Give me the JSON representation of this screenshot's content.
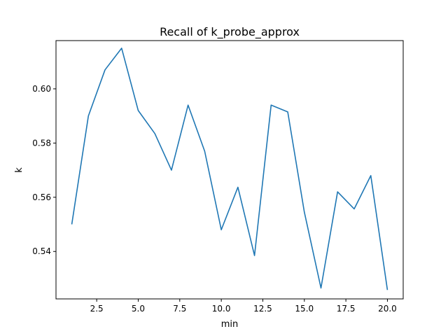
{
  "chart_data": {
    "type": "line",
    "title": "Recall of k_probe_approx",
    "xlabel": "min",
    "ylabel": "k",
    "xlim": [
      0.05,
      20.95
    ],
    "ylim": [
      0.5225,
      0.6178
    ],
    "xticks": [
      2.5,
      5.0,
      7.5,
      10.0,
      12.5,
      15.0,
      17.5,
      20.0
    ],
    "xtick_labels": [
      "2.5",
      "5.0",
      "7.5",
      "10.0",
      "12.5",
      "15.0",
      "17.5",
      "20.0"
    ],
    "yticks": [
      0.54,
      0.56,
      0.58,
      0.6
    ],
    "ytick_labels": [
      "0.54",
      "0.56",
      "0.58",
      "0.60"
    ],
    "grid": false,
    "legend": "none",
    "colors": {
      "line": "#1f77b4"
    },
    "series": [
      {
        "x": [
          1,
          2,
          3,
          4,
          5,
          6,
          7,
          8,
          9,
          10,
          11,
          12,
          13,
          14,
          15,
          16,
          17,
          18,
          19,
          20
        ],
        "values": [
          0.55,
          0.59,
          0.607,
          0.615,
          0.592,
          0.5835,
          0.57,
          0.594,
          0.577,
          0.548,
          0.5637,
          0.5385,
          0.594,
          0.5915,
          0.5545,
          0.5265,
          0.562,
          0.5557,
          0.568,
          0.5258
        ]
      }
    ]
  }
}
